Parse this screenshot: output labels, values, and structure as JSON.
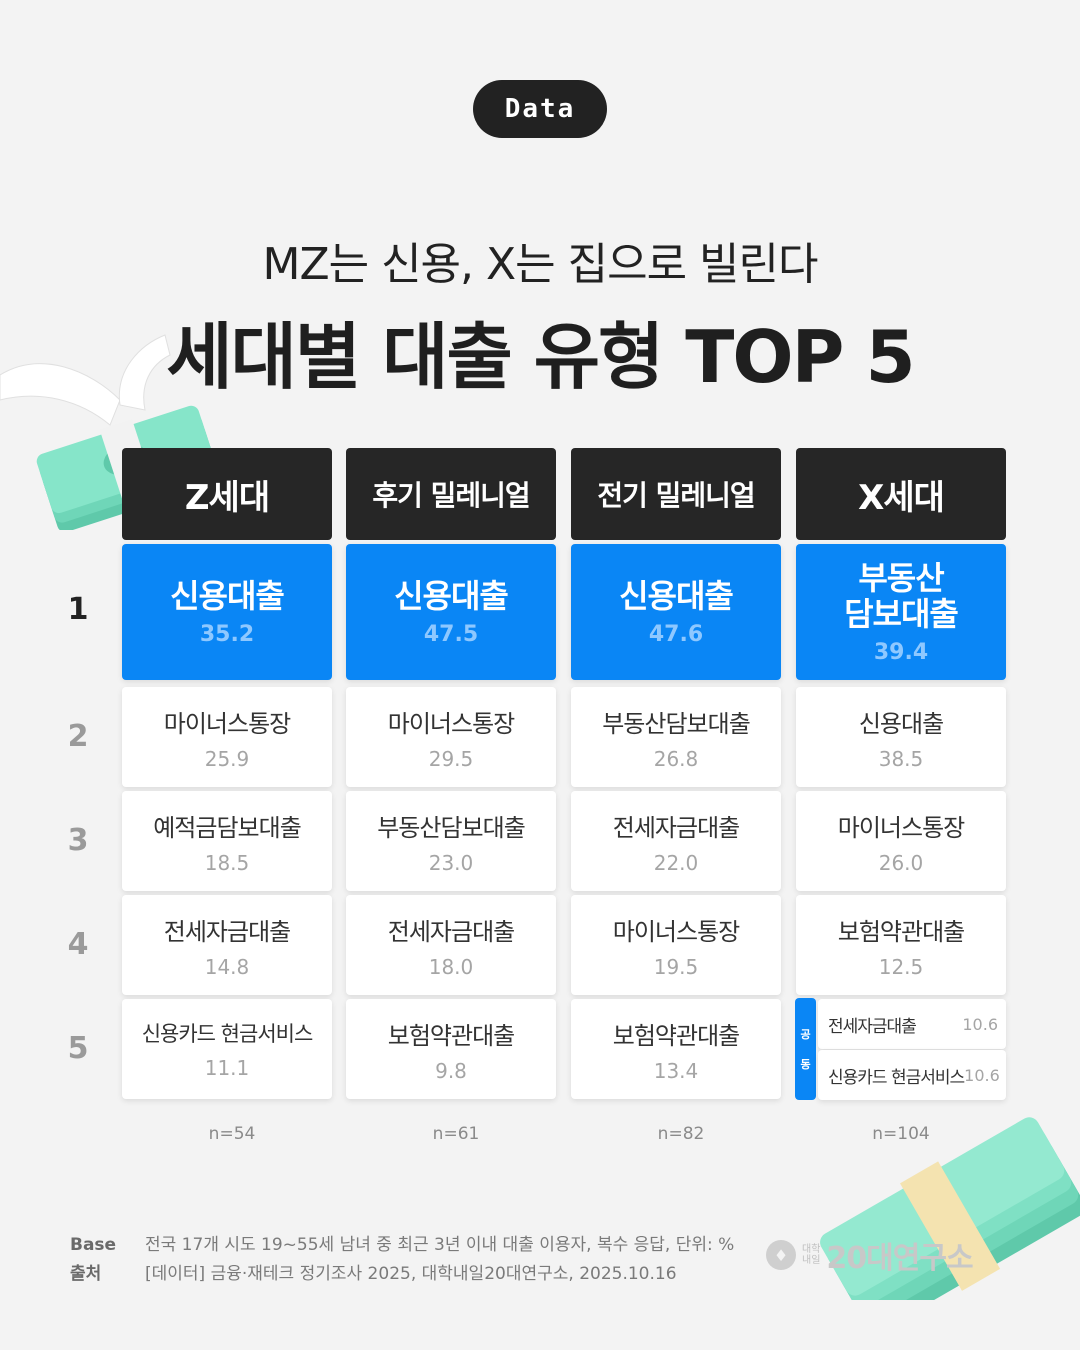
{
  "badge": "Data",
  "subtitle": "MZ는 신용, X는 집으로 빌린다",
  "title": "세대별 대출 유형 TOP 5",
  "chart_data": {
    "type": "table",
    "title": "세대별 대출 유형 TOP 5",
    "ranks": [
      "1",
      "2",
      "3",
      "4",
      "5"
    ],
    "columns": [
      {
        "name": "Z세대",
        "n": "n=54",
        "items": [
          {
            "label": "신용대출",
            "value": "35.2"
          },
          {
            "label": "마이너스통장",
            "value": "25.9"
          },
          {
            "label": "예적금담보대출",
            "value": "18.5"
          },
          {
            "label": "전세자금대출",
            "value": "14.8"
          },
          {
            "label": "신용카드 현금서비스",
            "value": "11.1"
          }
        ]
      },
      {
        "name": "후기 밀레니얼",
        "n": "n=61",
        "items": [
          {
            "label": "신용대출",
            "value": "47.5"
          },
          {
            "label": "마이너스통장",
            "value": "29.5"
          },
          {
            "label": "부동산담보대출",
            "value": "23.0"
          },
          {
            "label": "전세자금대출",
            "value": "18.0"
          },
          {
            "label": "보험약관대출",
            "value": "9.8"
          }
        ]
      },
      {
        "name": "전기 밀레니얼",
        "n": "n=82",
        "items": [
          {
            "label": "신용대출",
            "value": "47.6"
          },
          {
            "label": "부동산담보대출",
            "value": "26.8"
          },
          {
            "label": "전세자금대출",
            "value": "22.0"
          },
          {
            "label": "마이너스통장",
            "value": "19.5"
          },
          {
            "label": "보험약관대출",
            "value": "13.4"
          }
        ]
      },
      {
        "name": "X세대",
        "n": "n=104",
        "items": [
          {
            "label": "부동산\n담보대출",
            "value": "39.4"
          },
          {
            "label": "신용대출",
            "value": "38.5"
          },
          {
            "label": "마이너스통장",
            "value": "26.0"
          },
          {
            "label": "보험약관대출",
            "value": "12.5"
          }
        ],
        "tie": {
          "tag": [
            "공",
            "동"
          ],
          "items": [
            {
              "label": "전세자금대출",
              "value": "10.6"
            },
            {
              "label": "신용카드 현금서비스",
              "value": "10.6"
            }
          ]
        }
      }
    ]
  },
  "footer": {
    "base_key": "Base",
    "base_text": "전국 17개 시도 19~55세 남녀 중 최근 3년 이내 대출 이용자, 복수 응답, 단위: %",
    "source_key": "출처",
    "source_text": "[데이터] 금융·재테크 정기조사 2025, 대학내일20대연구소, 2025.10.16"
  },
  "logo": {
    "small_top": "대학",
    "small_bottom": "내일",
    "brand": "20대연구소"
  },
  "colors": {
    "accent": "#0a86f5",
    "header": "#262626",
    "money": "#7fe0c4",
    "band": "#f4e3b0"
  }
}
